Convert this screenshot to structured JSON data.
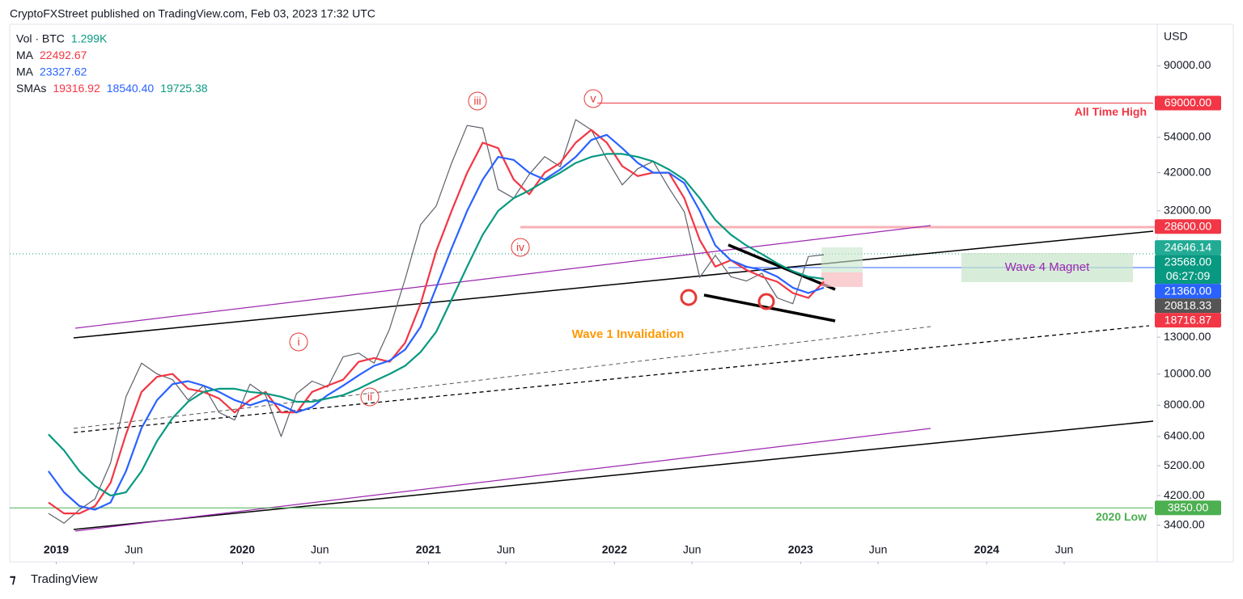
{
  "header": {
    "title": "CryptoFXStreet published on TradingView.com, Feb 03, 2023 17:32 UTC"
  },
  "legend": [
    {
      "name": "Vol · BTC",
      "values": [
        "1.299K"
      ]
    },
    {
      "name": "MA",
      "values": [
        "22492.67"
      ]
    },
    {
      "name": "MA",
      "values": [
        "23327.62"
      ]
    },
    {
      "name": "SMAs",
      "values": [
        "19316.92",
        "18540.40",
        "19725.38"
      ]
    }
  ],
  "footer": {
    "brand": "TradingView"
  },
  "annotations": {
    "wave_i": "i",
    "wave_ii": "ii",
    "wave_iii": "iii",
    "wave_iv": "iv",
    "wave_v": "v",
    "invalidation": "Wave 1 Invalidation",
    "magnet": "Wave 4 Magnet"
  },
  "chart_data": {
    "type": "line",
    "y_axis_label": "USD",
    "log_scale": true,
    "x": [
      "2018-12",
      "2019-01",
      "2019-02",
      "2019-03",
      "2019-04",
      "2019-05",
      "2019-06",
      "2019-07",
      "2019-08",
      "2019-09",
      "2019-10",
      "2019-11",
      "2019-12",
      "2020-01",
      "2020-02",
      "2020-03",
      "2020-04",
      "2020-05",
      "2020-06",
      "2020-07",
      "2020-08",
      "2020-09",
      "2020-10",
      "2020-11",
      "2020-12",
      "2021-01",
      "2021-02",
      "2021-03",
      "2021-04",
      "2021-05",
      "2021-06",
      "2021-07",
      "2021-08",
      "2021-09",
      "2021-10",
      "2021-11",
      "2021-12",
      "2022-01",
      "2022-02",
      "2022-03",
      "2022-04",
      "2022-05",
      "2022-06",
      "2022-07",
      "2022-08",
      "2022-09",
      "2022-10",
      "2022-11",
      "2022-12",
      "2023-01",
      "2023-02"
    ],
    "series": [
      {
        "name": "BTC",
        "color": "#5d606b",
        "values": [
          3700,
          3450,
          3800,
          4100,
          5300,
          8500,
          10800,
          10000,
          9600,
          8300,
          9200,
          7600,
          7200,
          9300,
          8600,
          6400,
          8700,
          9500,
          9100,
          11300,
          11600,
          10800,
          13800,
          19700,
          29000,
          33100,
          45000,
          58800,
          57700,
          37300,
          35000,
          41500,
          47100,
          43800,
          61300,
          57000,
          46300,
          38500,
          43200,
          45500,
          37700,
          31800,
          19900,
          23300,
          20000,
          19400,
          20500,
          17200,
          16500,
          23100,
          23400
        ]
      },
      {
        "name": "SMA fast",
        "color": "#f23645",
        "values": [
          4000,
          3700,
          3700,
          3900,
          4600,
          6500,
          8800,
          9800,
          10000,
          9000,
          8800,
          8400,
          7600,
          8300,
          8800,
          7600,
          7600,
          8800,
          9200,
          9600,
          10900,
          11200,
          10900,
          12500,
          16500,
          24000,
          32000,
          42000,
          52000,
          50000,
          40000,
          36000,
          42000,
          45000,
          52000,
          57000,
          52000,
          44000,
          41000,
          42000,
          42000,
          35000,
          26000,
          21500,
          22500,
          21000,
          20000,
          19300,
          17800,
          17200,
          19300
        ]
      },
      {
        "name": "SMA mid",
        "color": "#2962ff",
        "values": [
          5000,
          4300,
          3900,
          3800,
          4000,
          5000,
          6800,
          8300,
          9300,
          9500,
          9200,
          8800,
          8300,
          8000,
          8300,
          8000,
          7600,
          7900,
          8600,
          9200,
          9900,
          10600,
          11000,
          11900,
          14000,
          18500,
          24500,
          32000,
          40000,
          47000,
          46000,
          42000,
          40000,
          43000,
          47000,
          53000,
          55000,
          50000,
          45000,
          42000,
          42000,
          39000,
          32000,
          25000,
          22500,
          21500,
          21000,
          20000,
          18500,
          17800,
          18500
        ]
      },
      {
        "name": "SMA slow",
        "color": "#089981",
        "values": [
          6500,
          5800,
          5000,
          4500,
          4200,
          4300,
          5000,
          6200,
          7300,
          8200,
          8800,
          9000,
          9000,
          8800,
          8700,
          8500,
          8200,
          8200,
          8400,
          8600,
          9000,
          9500,
          10000,
          10600,
          11700,
          13500,
          17000,
          21500,
          27000,
          32000,
          35000,
          37000,
          39500,
          42000,
          45000,
          47000,
          48000,
          48000,
          47000,
          45500,
          43000,
          40000,
          35000,
          30000,
          27000,
          25000,
          23500,
          22000,
          20800,
          20000,
          19700
        ]
      }
    ],
    "xlim": [
      "2018-10",
      "2024-12"
    ],
    "xticks": [
      {
        "value": "2019-01",
        "label": "2019"
      },
      {
        "value": "2019-06",
        "label": "Jun"
      },
      {
        "value": "2020-01",
        "label": "2020"
      },
      {
        "value": "2020-06",
        "label": "Jun"
      },
      {
        "value": "2021-01",
        "label": "2021"
      },
      {
        "value": "2021-06",
        "label": "Jun"
      },
      {
        "value": "2022-01",
        "label": "2022"
      },
      {
        "value": "2022-06",
        "label": "Jun"
      },
      {
        "value": "2023-01",
        "label": "2023"
      },
      {
        "value": "2023-06",
        "label": "Jun"
      },
      {
        "value": "2024-01",
        "label": "2024"
      },
      {
        "value": "2024-06",
        "label": "Jun"
      }
    ],
    "ylim": [
      2620,
      121000
    ],
    "yticks": [
      {
        "value": 90000,
        "label": "90000.00"
      },
      {
        "value": 54000,
        "label": "54000.00"
      },
      {
        "value": 42000,
        "label": "42000.00"
      },
      {
        "value": 32000,
        "label": "32000.00"
      },
      {
        "value": 13000,
        "label": "13000.00"
      },
      {
        "value": 10000,
        "label": "10000.00"
      },
      {
        "value": 8000,
        "label": "8000.00"
      },
      {
        "value": 6400,
        "label": "6400.00"
      },
      {
        "value": 5200,
        "label": "5200.00"
      },
      {
        "value": 4200,
        "label": "4200.00"
      },
      {
        "value": 3400,
        "label": "3400.00"
      }
    ],
    "levels": [
      {
        "value": 69000,
        "text": "All Time High",
        "color": "#f23645"
      },
      {
        "value": 3850,
        "text": "2020 Low",
        "color": "#4caf50"
      }
    ],
    "price_labels": [
      {
        "value": 69000,
        "label": "69000.00",
        "color": "#f23645"
      },
      {
        "value": 28600,
        "label": "28600.00",
        "color": "#f23645"
      },
      {
        "value": 24646.14,
        "label": "24646.14",
        "color": "#22ab94"
      },
      {
        "value": 23568,
        "label": "23568.00",
        "color": "#089981",
        "countdown": "06:27:09"
      },
      {
        "value": 21360,
        "label": "21360.00",
        "color": "#2962ff"
      },
      {
        "value": 20818.33,
        "label": "20818.33",
        "color": "#555555"
      },
      {
        "value": 18716.87,
        "label": "18716.87",
        "color": "#f23645"
      },
      {
        "value": 3850,
        "label": "3850.00",
        "color": "#4caf50"
      }
    ]
  }
}
